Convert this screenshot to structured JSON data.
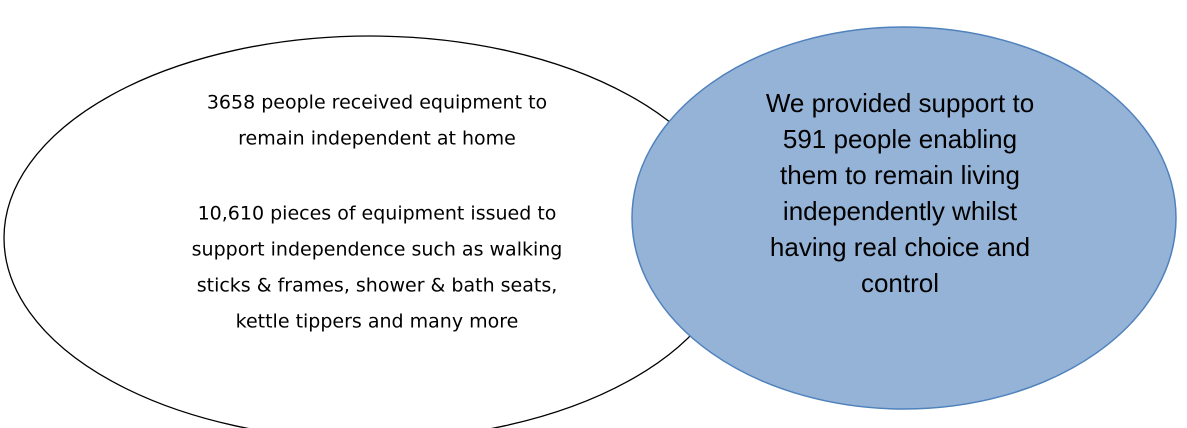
{
  "left_bubble": {
    "paragraphs": [
      [
        "3658 people received equipment to",
        "remain independent at home"
      ],
      [
        "10,610 pieces of equipment issued to",
        "support independence such as walking",
        "sticks & frames, shower & bath seats,",
        "kettle tippers and many more"
      ]
    ]
  },
  "right_bubble": {
    "lines": [
      "We provided support to",
      "591 people enabling",
      "them to remain living",
      "independently whilst",
      "having real choice and",
      "control"
    ]
  }
}
